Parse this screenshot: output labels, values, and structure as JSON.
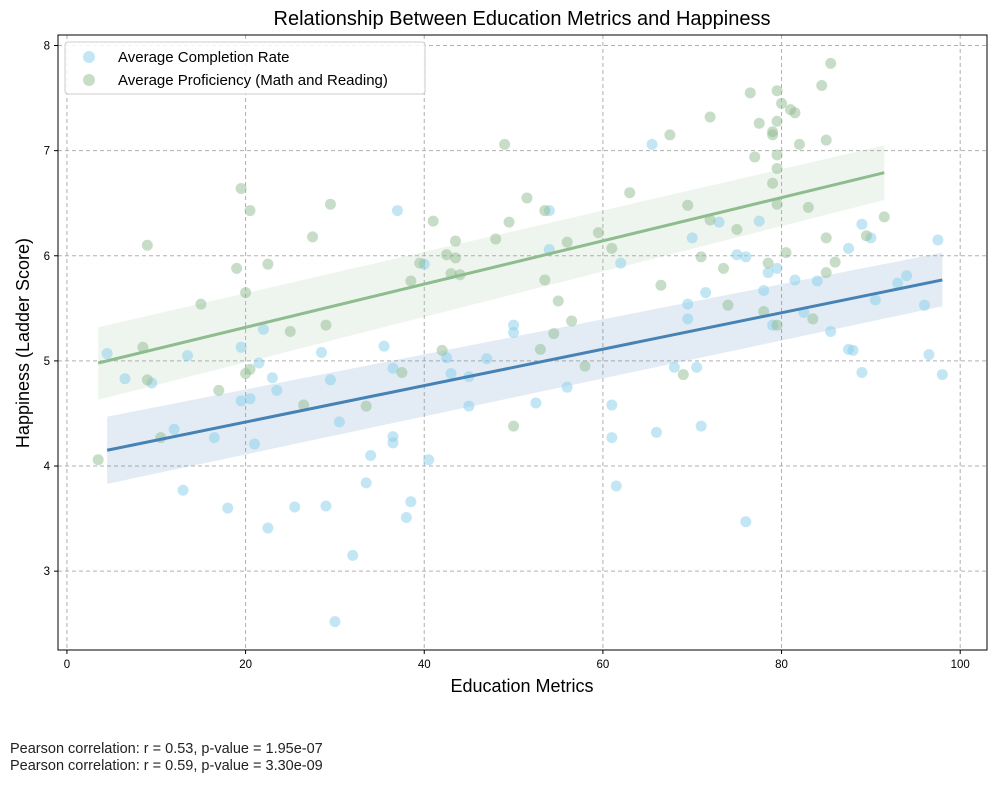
{
  "chart_data": {
    "type": "scatter",
    "title": "Relationship Between Education Metrics and Happiness",
    "xlabel": "Education Metrics",
    "ylabel": "Happiness (Ladder Score)",
    "xlim": [
      -1,
      103
    ],
    "ylim": [
      2.25,
      8.1
    ],
    "xticks": [
      0,
      20,
      40,
      60,
      80,
      100
    ],
    "yticks": [
      3,
      4,
      5,
      6,
      7,
      8
    ],
    "grid": true,
    "legend_position": "top-left",
    "series": [
      {
        "name": "Average Completion Rate",
        "color": "#87CEEB",
        "points": [
          [
            4.5,
            5.07
          ],
          [
            6.5,
            4.83
          ],
          [
            9.5,
            4.79
          ],
          [
            12,
            4.35
          ],
          [
            13,
            3.77
          ],
          [
            13.5,
            5.05
          ],
          [
            16.5,
            4.27
          ],
          [
            18,
            3.6
          ],
          [
            19.5,
            5.13
          ],
          [
            19.5,
            4.62
          ],
          [
            20.5,
            4.64
          ],
          [
            21,
            4.21
          ],
          [
            21.5,
            4.98
          ],
          [
            22,
            5.3
          ],
          [
            22.5,
            3.41
          ],
          [
            23,
            4.84
          ],
          [
            23.5,
            4.72
          ],
          [
            25.5,
            3.61
          ],
          [
            28.5,
            5.08
          ],
          [
            29,
            3.62
          ],
          [
            29.5,
            4.82
          ],
          [
            30,
            2.52
          ],
          [
            30.5,
            4.42
          ],
          [
            32,
            3.15
          ],
          [
            33.5,
            3.84
          ],
          [
            34,
            4.1
          ],
          [
            35.5,
            5.14
          ],
          [
            36.5,
            4.93
          ],
          [
            36.5,
            4.28
          ],
          [
            36.5,
            4.22
          ],
          [
            37,
            6.43
          ],
          [
            38,
            3.51
          ],
          [
            38.5,
            3.66
          ],
          [
            40,
            5.92
          ],
          [
            40.5,
            4.06
          ],
          [
            42.5,
            5.03
          ],
          [
            43,
            4.88
          ],
          [
            45,
            4.85
          ],
          [
            45,
            4.57
          ],
          [
            47,
            5.02
          ],
          [
            50,
            5.34
          ],
          [
            50,
            5.27
          ],
          [
            52.5,
            4.6
          ],
          [
            54,
            6.43
          ],
          [
            54,
            6.06
          ],
          [
            56,
            4.75
          ],
          [
            61,
            4.58
          ],
          [
            61,
            4.27
          ],
          [
            61.5,
            3.81
          ],
          [
            62,
            5.93
          ],
          [
            65.5,
            7.06
          ],
          [
            66,
            4.32
          ],
          [
            68,
            4.94
          ],
          [
            69.5,
            5.54
          ],
          [
            69.5,
            5.4
          ],
          [
            70,
            6.17
          ],
          [
            70.5,
            4.94
          ],
          [
            71,
            4.38
          ],
          [
            71.5,
            5.65
          ],
          [
            73,
            6.32
          ],
          [
            75,
            6.01
          ],
          [
            76,
            5.99
          ],
          [
            76,
            3.47
          ],
          [
            77.5,
            6.33
          ],
          [
            78,
            5.67
          ],
          [
            78.5,
            5.84
          ],
          [
            79,
            5.34
          ],
          [
            79.5,
            5.88
          ],
          [
            81.5,
            5.77
          ],
          [
            82.5,
            5.46
          ],
          [
            84,
            5.76
          ],
          [
            85.5,
            5.28
          ],
          [
            87.5,
            5.11
          ],
          [
            87.5,
            6.07
          ],
          [
            88,
            5.1
          ],
          [
            89,
            4.89
          ],
          [
            89,
            6.3
          ],
          [
            90,
            6.17
          ],
          [
            90.5,
            5.58
          ],
          [
            93,
            5.74
          ],
          [
            94,
            5.81
          ],
          [
            96,
            5.53
          ],
          [
            96.5,
            5.06
          ],
          [
            97.5,
            6.15
          ],
          [
            98,
            4.87
          ]
        ],
        "fit": {
          "x": [
            4.5,
            98
          ],
          "y": [
            4.15,
            5.77
          ],
          "ci_low": [
            3.83,
            5.52
          ],
          "ci_high": [
            4.47,
            6.03
          ]
        }
      },
      {
        "name": "Average Proficiency (Math and Reading)",
        "color": "#8FBC8F",
        "points": [
          [
            3.5,
            4.06
          ],
          [
            8.5,
            5.13
          ],
          [
            9,
            6.1
          ],
          [
            9,
            4.82
          ],
          [
            10.5,
            4.27
          ],
          [
            15,
            5.54
          ],
          [
            17,
            4.72
          ],
          [
            19,
            5.88
          ],
          [
            19.5,
            6.64
          ],
          [
            20,
            5.65
          ],
          [
            20,
            4.88
          ],
          [
            20.5,
            6.43
          ],
          [
            20.5,
            4.92
          ],
          [
            22.5,
            5.92
          ],
          [
            25,
            5.28
          ],
          [
            26.5,
            4.58
          ],
          [
            27.5,
            6.18
          ],
          [
            29,
            5.34
          ],
          [
            29.5,
            6.49
          ],
          [
            33.5,
            4.57
          ],
          [
            37.5,
            4.89
          ],
          [
            38.5,
            5.76
          ],
          [
            39.5,
            5.93
          ],
          [
            41,
            6.33
          ],
          [
            42,
            5.1
          ],
          [
            42.5,
            6.01
          ],
          [
            43,
            5.83
          ],
          [
            43.5,
            6.14
          ],
          [
            43.5,
            5.98
          ],
          [
            44,
            5.82
          ],
          [
            48,
            6.16
          ],
          [
            49,
            7.06
          ],
          [
            49.5,
            6.32
          ],
          [
            50,
            4.38
          ],
          [
            51.5,
            6.55
          ],
          [
            53,
            5.11
          ],
          [
            53.5,
            6.43
          ],
          [
            53.5,
            5.77
          ],
          [
            54.5,
            5.26
          ],
          [
            55,
            5.57
          ],
          [
            56,
            6.13
          ],
          [
            56.5,
            5.38
          ],
          [
            58,
            4.95
          ],
          [
            59.5,
            6.22
          ],
          [
            61,
            6.07
          ],
          [
            63,
            6.6
          ],
          [
            66.5,
            5.72
          ],
          [
            67.5,
            7.15
          ],
          [
            69,
            4.87
          ],
          [
            69.5,
            6.48
          ],
          [
            71,
            5.99
          ],
          [
            72,
            7.32
          ],
          [
            72,
            6.34
          ],
          [
            73.5,
            5.88
          ],
          [
            74,
            5.53
          ],
          [
            75,
            6.25
          ],
          [
            76.5,
            7.55
          ],
          [
            77,
            6.94
          ],
          [
            77.5,
            7.26
          ],
          [
            78,
            5.47
          ],
          [
            78.5,
            5.93
          ],
          [
            79,
            7.18
          ],
          [
            79,
            7.15
          ],
          [
            79,
            6.69
          ],
          [
            79.5,
            7.57
          ],
          [
            79.5,
            7.28
          ],
          [
            79.5,
            6.96
          ],
          [
            79.5,
            6.83
          ],
          [
            79.5,
            6.49
          ],
          [
            79.5,
            5.34
          ],
          [
            80,
            7.45
          ],
          [
            80.5,
            6.03
          ],
          [
            81,
            7.39
          ],
          [
            81.5,
            7.36
          ],
          [
            82,
            7.06
          ],
          [
            83,
            6.46
          ],
          [
            83.5,
            5.4
          ],
          [
            84.5,
            7.62
          ],
          [
            85,
            7.1
          ],
          [
            85,
            6.17
          ],
          [
            85,
            5.84
          ],
          [
            85.5,
            7.83
          ],
          [
            86,
            5.94
          ],
          [
            89.5,
            6.19
          ],
          [
            91.5,
            6.37
          ]
        ],
        "fit": {
          "x": [
            3.5,
            91.5
          ],
          "y": [
            4.98,
            6.79
          ],
          "ci_low": [
            4.63,
            6.53
          ],
          "ci_high": [
            5.32,
            7.05
          ]
        }
      }
    ],
    "fit_colors": [
      "#4682B4",
      "#8FBC8F"
    ],
    "annotations": [
      "Pearson correlation: r = 0.53, p-value = 1.95e-07",
      "Pearson correlation: r = 0.59, p-value = 3.30e-09"
    ]
  }
}
